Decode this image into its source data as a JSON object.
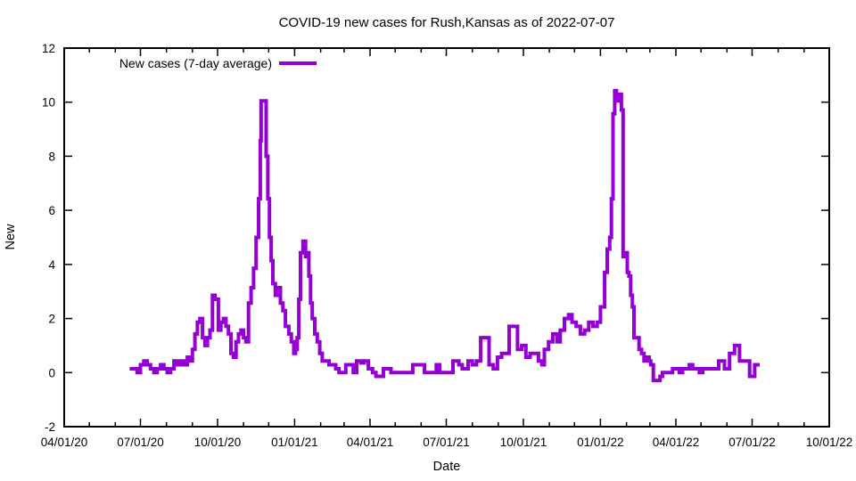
{
  "window": {
    "title": "COVID-19 new cases for Rush,Kansas as of 2022-07-07"
  },
  "chart_data": {
    "type": "line",
    "title": "COVID-19 new cases for Rush,Kansas as of 2022-07-07",
    "xlabel": "Date",
    "ylabel": "New",
    "grid": false,
    "background_color": "#ffffff",
    "axis_color": "#000000",
    "ylim": [
      -2,
      12
    ],
    "y_ticks": [
      -2,
      0,
      2,
      4,
      6,
      8,
      10,
      12
    ],
    "x_day_zero": "2020-04-01",
    "xlim_days": [
      0,
      913
    ],
    "x_major_tick_labels": [
      "04/01/20",
      "07/01/20",
      "10/01/20",
      "01/01/21",
      "04/01/21",
      "07/01/21",
      "10/01/21",
      "01/01/22",
      "04/01/22",
      "07/01/22",
      "10/01/22"
    ],
    "x_minor_tick_interval": "1 month",
    "legend": {
      "position": "top-left-inside",
      "entries": [
        {
          "label": "New cases (7-day average)",
          "color": "#9400d3"
        }
      ]
    },
    "series": [
      {
        "name": "New cases (7-day average)",
        "color": "#9400d3",
        "style": "steps",
        "line_width": 4,
        "points": [
          [
            78,
            0.14
          ],
          [
            83,
            0.14
          ],
          [
            87,
            0.0
          ],
          [
            91,
            0.29
          ],
          [
            95,
            0.43
          ],
          [
            99,
            0.29
          ],
          [
            103,
            0.14
          ],
          [
            107,
            0.0
          ],
          [
            111,
            0.14
          ],
          [
            115,
            0.29
          ],
          [
            119,
            0.14
          ],
          [
            123,
            0.0
          ],
          [
            127,
            0.14
          ],
          [
            131,
            0.43
          ],
          [
            135,
            0.29
          ],
          [
            139,
            0.43
          ],
          [
            143,
            0.29
          ],
          [
            147,
            0.57
          ],
          [
            150,
            0.43
          ],
          [
            153,
            0.86
          ],
          [
            156,
            1.43
          ],
          [
            159,
            1.86
          ],
          [
            162,
            2.0
          ],
          [
            165,
            1.29
          ],
          [
            168,
            1.0
          ],
          [
            171,
            1.29
          ],
          [
            174,
            1.57
          ],
          [
            177,
            2.86
          ],
          [
            180,
            2.71
          ],
          [
            184,
            1.57
          ],
          [
            187,
            1.86
          ],
          [
            190,
            2.0
          ],
          [
            193,
            1.71
          ],
          [
            196,
            1.43
          ],
          [
            199,
            0.71
          ],
          [
            202,
            0.57
          ],
          [
            205,
            1.14
          ],
          [
            208,
            1.43
          ],
          [
            211,
            1.57
          ],
          [
            214,
            1.29
          ],
          [
            217,
            1.14
          ],
          [
            220,
            2.57
          ],
          [
            223,
            3.14
          ],
          [
            226,
            3.86
          ],
          [
            229,
            5.0
          ],
          [
            232,
            6.43
          ],
          [
            234,
            8.57
          ],
          [
            235,
            10.05
          ],
          [
            239,
            10.05
          ],
          [
            241,
            8.0
          ],
          [
            243,
            6.43
          ],
          [
            245,
            5.0
          ],
          [
            247,
            4.14
          ],
          [
            249,
            3.29
          ],
          [
            252,
            2.86
          ],
          [
            255,
            3.14
          ],
          [
            258,
            2.57
          ],
          [
            261,
            2.29
          ],
          [
            264,
            1.71
          ],
          [
            268,
            1.43
          ],
          [
            271,
            1.14
          ],
          [
            274,
            0.71
          ],
          [
            276,
            0.86
          ],
          [
            278,
            1.29
          ],
          [
            280,
            2.71
          ],
          [
            282,
            4.43
          ],
          [
            285,
            4.86
          ],
          [
            288,
            4.29
          ],
          [
            290,
            4.43
          ],
          [
            292,
            3.57
          ],
          [
            294,
            2.57
          ],
          [
            296,
            2.0
          ],
          [
            299,
            1.43
          ],
          [
            302,
            1.14
          ],
          [
            305,
            0.71
          ],
          [
            308,
            0.43
          ],
          [
            312,
            0.43
          ],
          [
            316,
            0.29
          ],
          [
            320,
            0.29
          ],
          [
            324,
            0.14
          ],
          [
            328,
            0.0
          ],
          [
            332,
            0.0
          ],
          [
            336,
            0.29
          ],
          [
            341,
            0.29
          ],
          [
            345,
            0.0
          ],
          [
            349,
            0.43
          ],
          [
            354,
            0.36
          ],
          [
            358,
            0.43
          ],
          [
            363,
            0.14
          ],
          [
            368,
            0.0
          ],
          [
            372,
            -0.14
          ],
          [
            377,
            -0.14
          ],
          [
            381,
            0.14
          ],
          [
            386,
            0.14
          ],
          [
            390,
            0.0
          ],
          [
            395,
            0.0
          ],
          [
            400,
            0.0
          ],
          [
            405,
            0.0
          ],
          [
            410,
            0.0
          ],
          [
            416,
            0.29
          ],
          [
            421,
            0.29
          ],
          [
            426,
            0.29
          ],
          [
            430,
            0.0
          ],
          [
            435,
            0.0
          ],
          [
            440,
            0.0
          ],
          [
            444,
            0.29
          ],
          [
            448,
            0.0
          ],
          [
            453,
            0.0
          ],
          [
            458,
            0.0
          ],
          [
            462,
            0.0
          ],
          [
            464,
            0.43
          ],
          [
            468,
            0.43
          ],
          [
            471,
            0.29
          ],
          [
            475,
            0.14
          ],
          [
            478,
            0.14
          ],
          [
            482,
            0.43
          ],
          [
            487,
            0.29
          ],
          [
            492,
            0.43
          ],
          [
            497,
            1.29
          ],
          [
            502,
            1.29
          ],
          [
            507,
            0.29
          ],
          [
            512,
            0.14
          ],
          [
            517,
            0.57
          ],
          [
            522,
            0.71
          ],
          [
            527,
            0.71
          ],
          [
            531,
            1.71
          ],
          [
            536,
            1.71
          ],
          [
            541,
            0.86
          ],
          [
            546,
            1.0
          ],
          [
            551,
            0.57
          ],
          [
            556,
            0.71
          ],
          [
            561,
            0.71
          ],
          [
            566,
            0.43
          ],
          [
            570,
            0.29
          ],
          [
            573,
            0.86
          ],
          [
            578,
            1.14
          ],
          [
            583,
            1.43
          ],
          [
            588,
            1.14
          ],
          [
            592,
            1.57
          ],
          [
            597,
            2.0
          ],
          [
            602,
            2.14
          ],
          [
            606,
            1.86
          ],
          [
            611,
            1.71
          ],
          [
            616,
            1.43
          ],
          [
            621,
            1.57
          ],
          [
            626,
            1.86
          ],
          [
            631,
            1.71
          ],
          [
            636,
            1.86
          ],
          [
            640,
            2.43
          ],
          [
            645,
            3.71
          ],
          [
            648,
            4.57
          ],
          [
            651,
            5.0
          ],
          [
            653,
            6.43
          ],
          [
            655,
            9.57
          ],
          [
            657,
            10.43
          ],
          [
            659,
            10.05
          ],
          [
            662,
            10.29
          ],
          [
            665,
            9.71
          ],
          [
            667,
            4.29
          ],
          [
            670,
            4.43
          ],
          [
            672,
            3.71
          ],
          [
            674,
            3.57
          ],
          [
            676,
            2.86
          ],
          [
            678,
            2.43
          ],
          [
            680,
            1.29
          ],
          [
            683,
            1.29
          ],
          [
            686,
            0.86
          ],
          [
            689,
            0.71
          ],
          [
            692,
            0.43
          ],
          [
            695,
            0.57
          ],
          [
            698,
            0.43
          ],
          [
            700,
            0.29
          ],
          [
            703,
            -0.29
          ],
          [
            708,
            -0.29
          ],
          [
            711,
            -0.14
          ],
          [
            714,
            0.0
          ],
          [
            718,
            0.0
          ],
          [
            722,
            0.0
          ],
          [
            726,
            0.14
          ],
          [
            730,
            0.14
          ],
          [
            734,
            0.0
          ],
          [
            738,
            0.14
          ],
          [
            742,
            0.14
          ],
          [
            746,
            0.29
          ],
          [
            750,
            0.14
          ],
          [
            754,
            0.14
          ],
          [
            758,
            0.0
          ],
          [
            762,
            0.14
          ],
          [
            766,
            0.14
          ],
          [
            770,
            0.14
          ],
          [
            774,
            0.14
          ],
          [
            778,
            0.14
          ],
          [
            781,
            0.43
          ],
          [
            785,
            0.43
          ],
          [
            788,
            0.14
          ],
          [
            791,
            0.14
          ],
          [
            794,
            0.71
          ],
          [
            797,
            0.71
          ],
          [
            800,
            1.0
          ],
          [
            803,
            1.0
          ],
          [
            806,
            0.43
          ],
          [
            810,
            0.43
          ],
          [
            814,
            0.43
          ],
          [
            818,
            -0.14
          ],
          [
            821,
            -0.14
          ],
          [
            824,
            0.29
          ],
          [
            827,
            0.29
          ],
          [
            830,
            0.29
          ]
        ]
      }
    ]
  }
}
